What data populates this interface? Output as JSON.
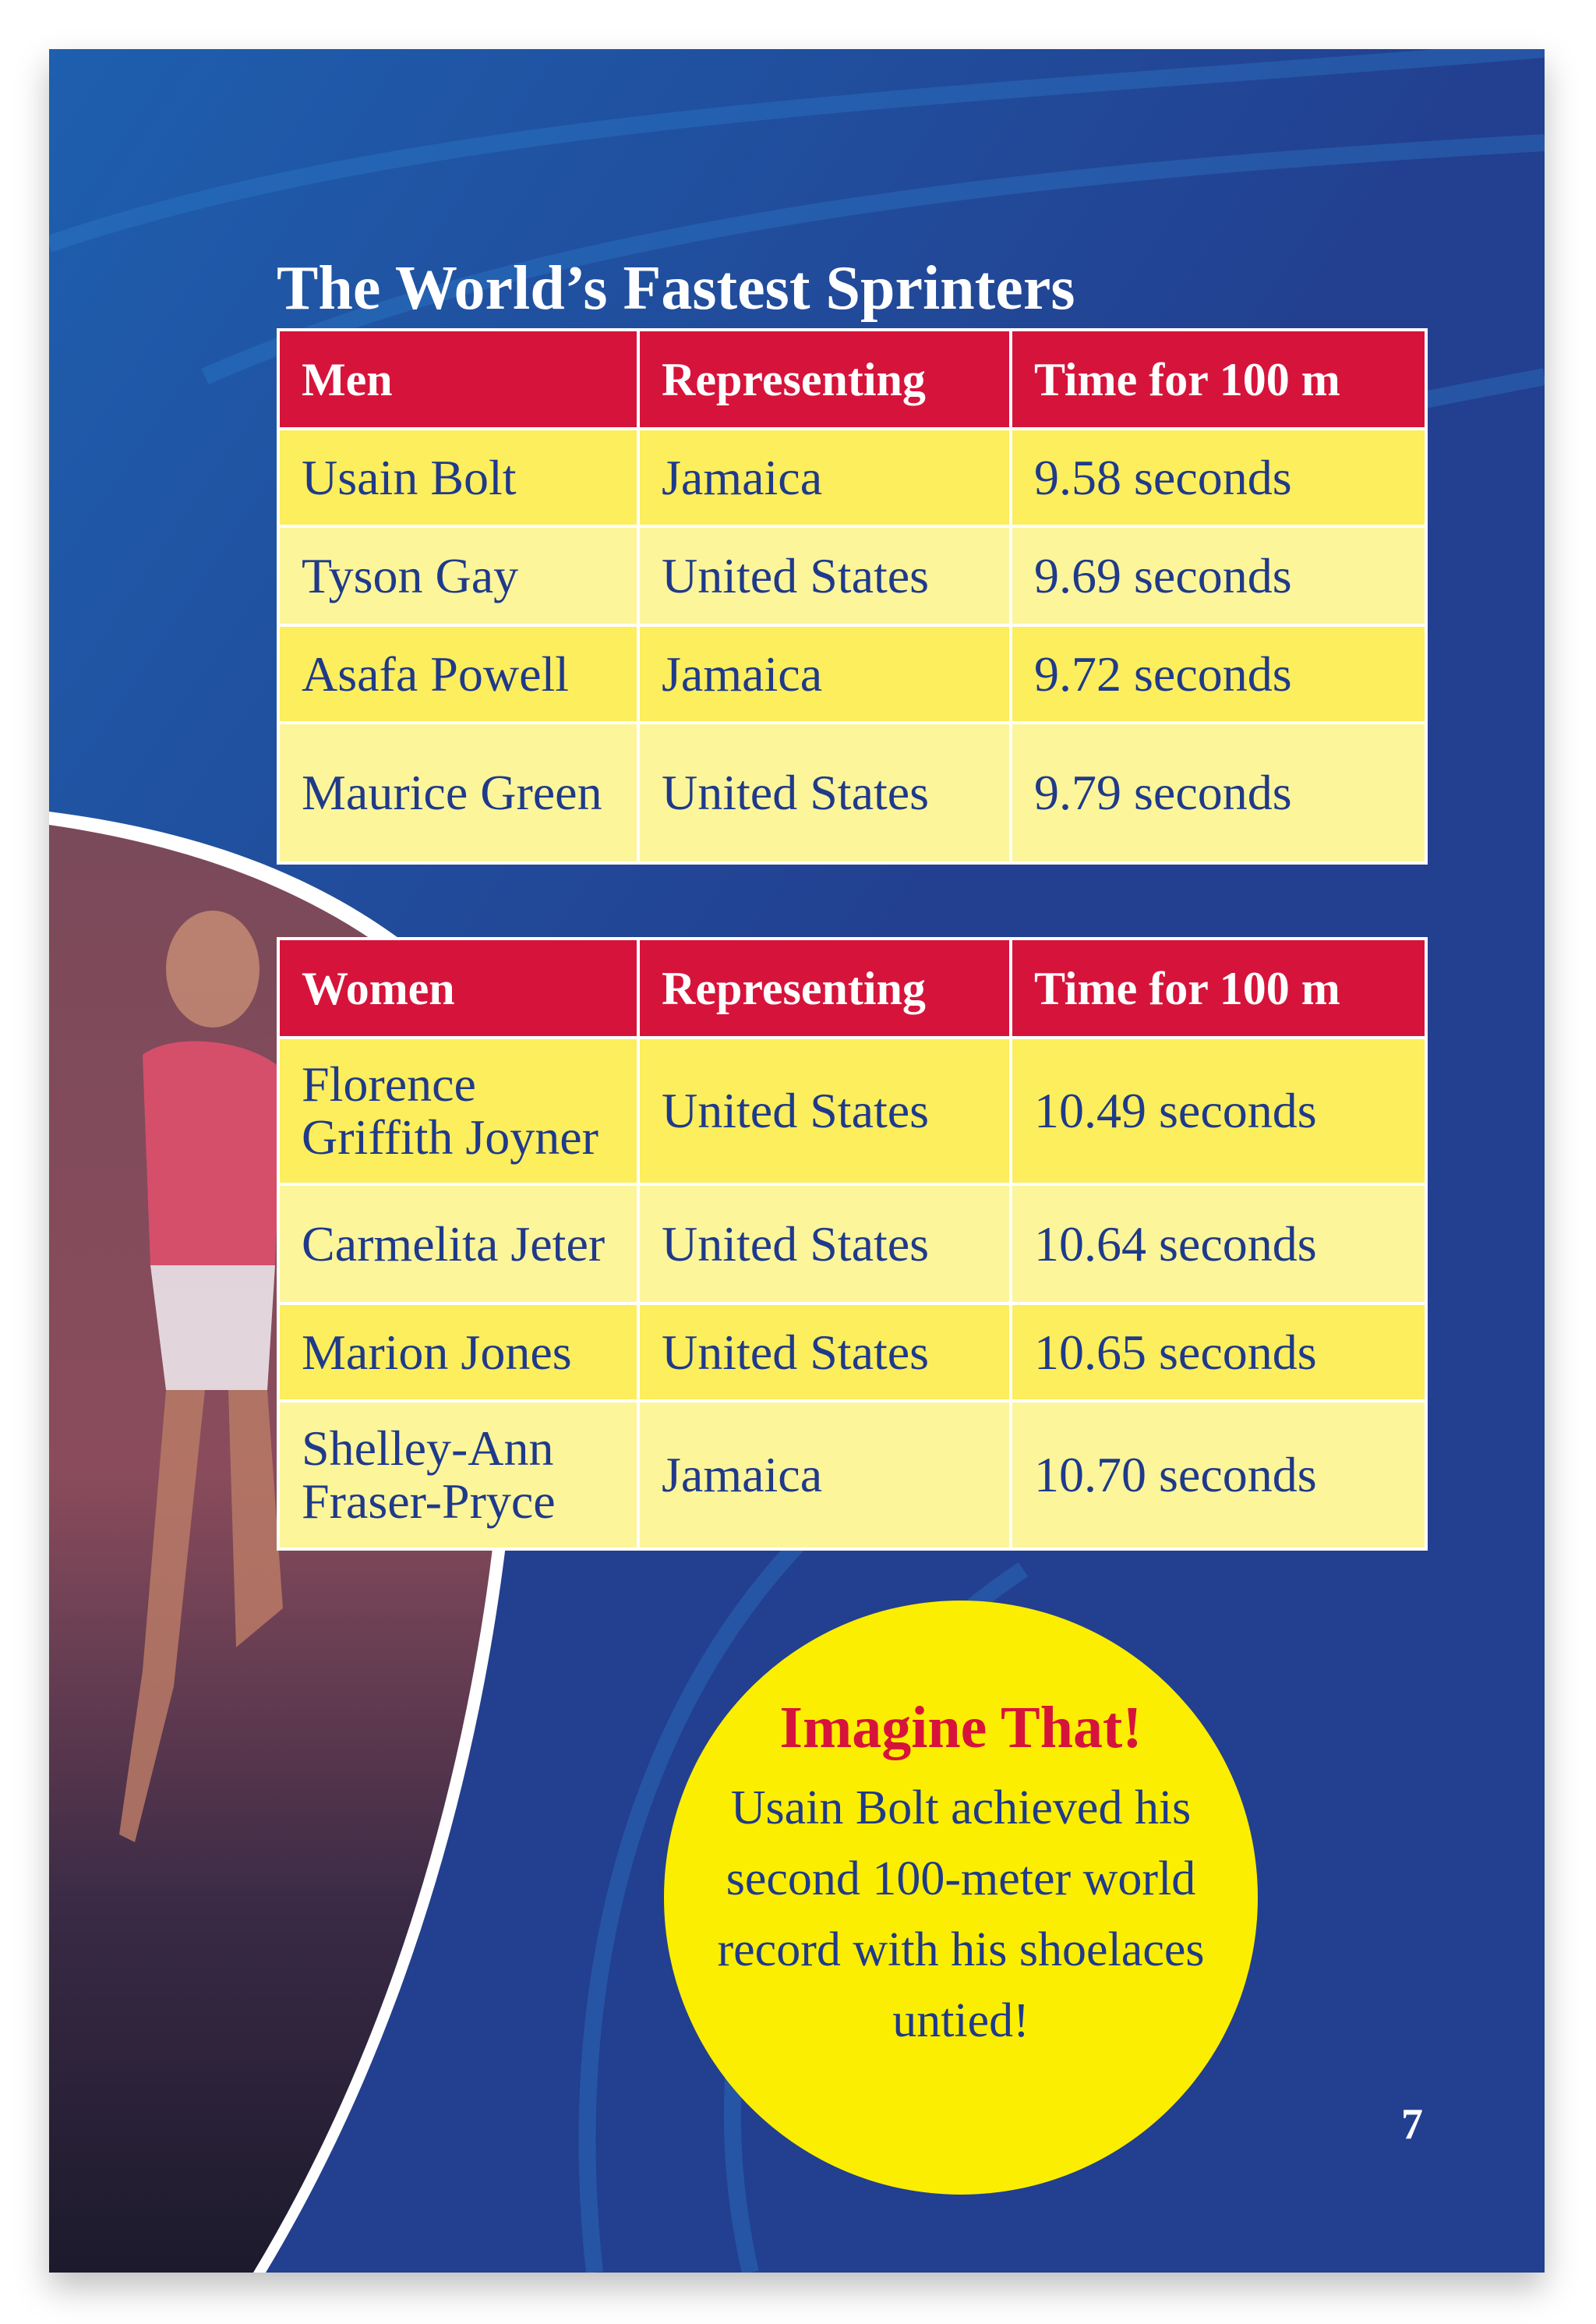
{
  "title": "The World’s Fastest Sprinters",
  "men_table": {
    "headers": [
      "Men",
      "Representing",
      "Time for 100 m"
    ],
    "rows": [
      [
        "Usain Bolt",
        "Jamaica",
        "9.58 seconds"
      ],
      [
        "Tyson Gay",
        "United States",
        "9.69 seconds"
      ],
      [
        "Asafa Powell",
        "Jamaica",
        "9.72 seconds"
      ],
      [
        "Maurice Green",
        "United States",
        "9.79 seconds"
      ]
    ]
  },
  "women_table": {
    "headers": [
      "Women",
      "Representing",
      "Time for 100 m"
    ],
    "rows": [
      [
        "Florence Griffith Joyner",
        "United States",
        "10.49 seconds"
      ],
      [
        "Carmelita Jeter",
        "United States",
        "10.64 seconds"
      ],
      [
        "Marion Jones",
        "United States",
        "10.65 seconds"
      ],
      [
        "Shelley-Ann Fraser-Pryce",
        "Jamaica",
        "10.70 seconds"
      ]
    ]
  },
  "callout": {
    "heading": "Imagine That!",
    "text": "Usain Bolt achieved his second 100-meter world record with his shoelaces untied!"
  },
  "page_number": "7",
  "colors": {
    "background": "#233f8f",
    "header": "#d6143b",
    "row_dark": "#fcee5c",
    "row_light": "#fcf59a",
    "callout": "#fbee00",
    "text": "#1f3a8a"
  }
}
